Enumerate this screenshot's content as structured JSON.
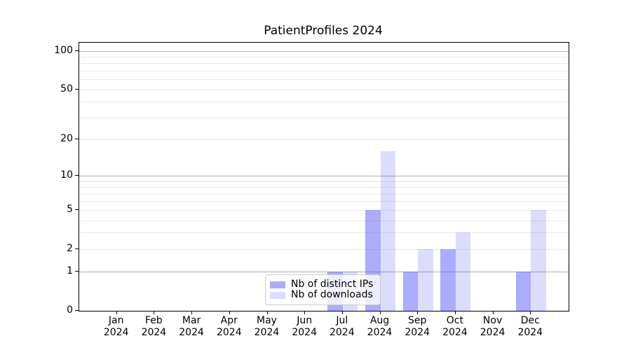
{
  "title": "PatientProfiles 2024",
  "chart_data": {
    "type": "bar",
    "title": "PatientProfiles 2024",
    "categories": [
      "Jan",
      "Feb",
      "Mar",
      "Apr",
      "May",
      "Jun",
      "Jul",
      "Aug",
      "Sep",
      "Oct",
      "Nov",
      "Dec"
    ],
    "category_sub_label": "2024",
    "series": [
      {
        "name": "Nb of distinct IPs",
        "color": "#5a5af5",
        "alpha": 0.5,
        "values": [
          0,
          0,
          0,
          0,
          0,
          0,
          1,
          5,
          1,
          2,
          0,
          1
        ]
      },
      {
        "name": "Nb of downloads",
        "color": "#5a5af5",
        "alpha": 0.21,
        "values": [
          0,
          0,
          0,
          0,
          0,
          0,
          1,
          16,
          2,
          3,
          0,
          5
        ]
      }
    ],
    "xlabel": "",
    "ylabel": "",
    "yscale": "log1p",
    "ylim": [
      0,
      115.6
    ],
    "yticks": [
      0,
      1,
      2,
      5,
      10,
      20,
      50,
      100
    ],
    "grid": {
      "on": true,
      "major_ticks": [
        1,
        10,
        100
      ],
      "minor_ticks": [
        2,
        3,
        4,
        5,
        6,
        7,
        8,
        9,
        20,
        30,
        40,
        50,
        60,
        70,
        80,
        90
      ],
      "major_color": "#b0b0b0",
      "minor_color": "#e9e9e9"
    },
    "legend_position": "lower center inside",
    "axis_color": "#000000"
  }
}
